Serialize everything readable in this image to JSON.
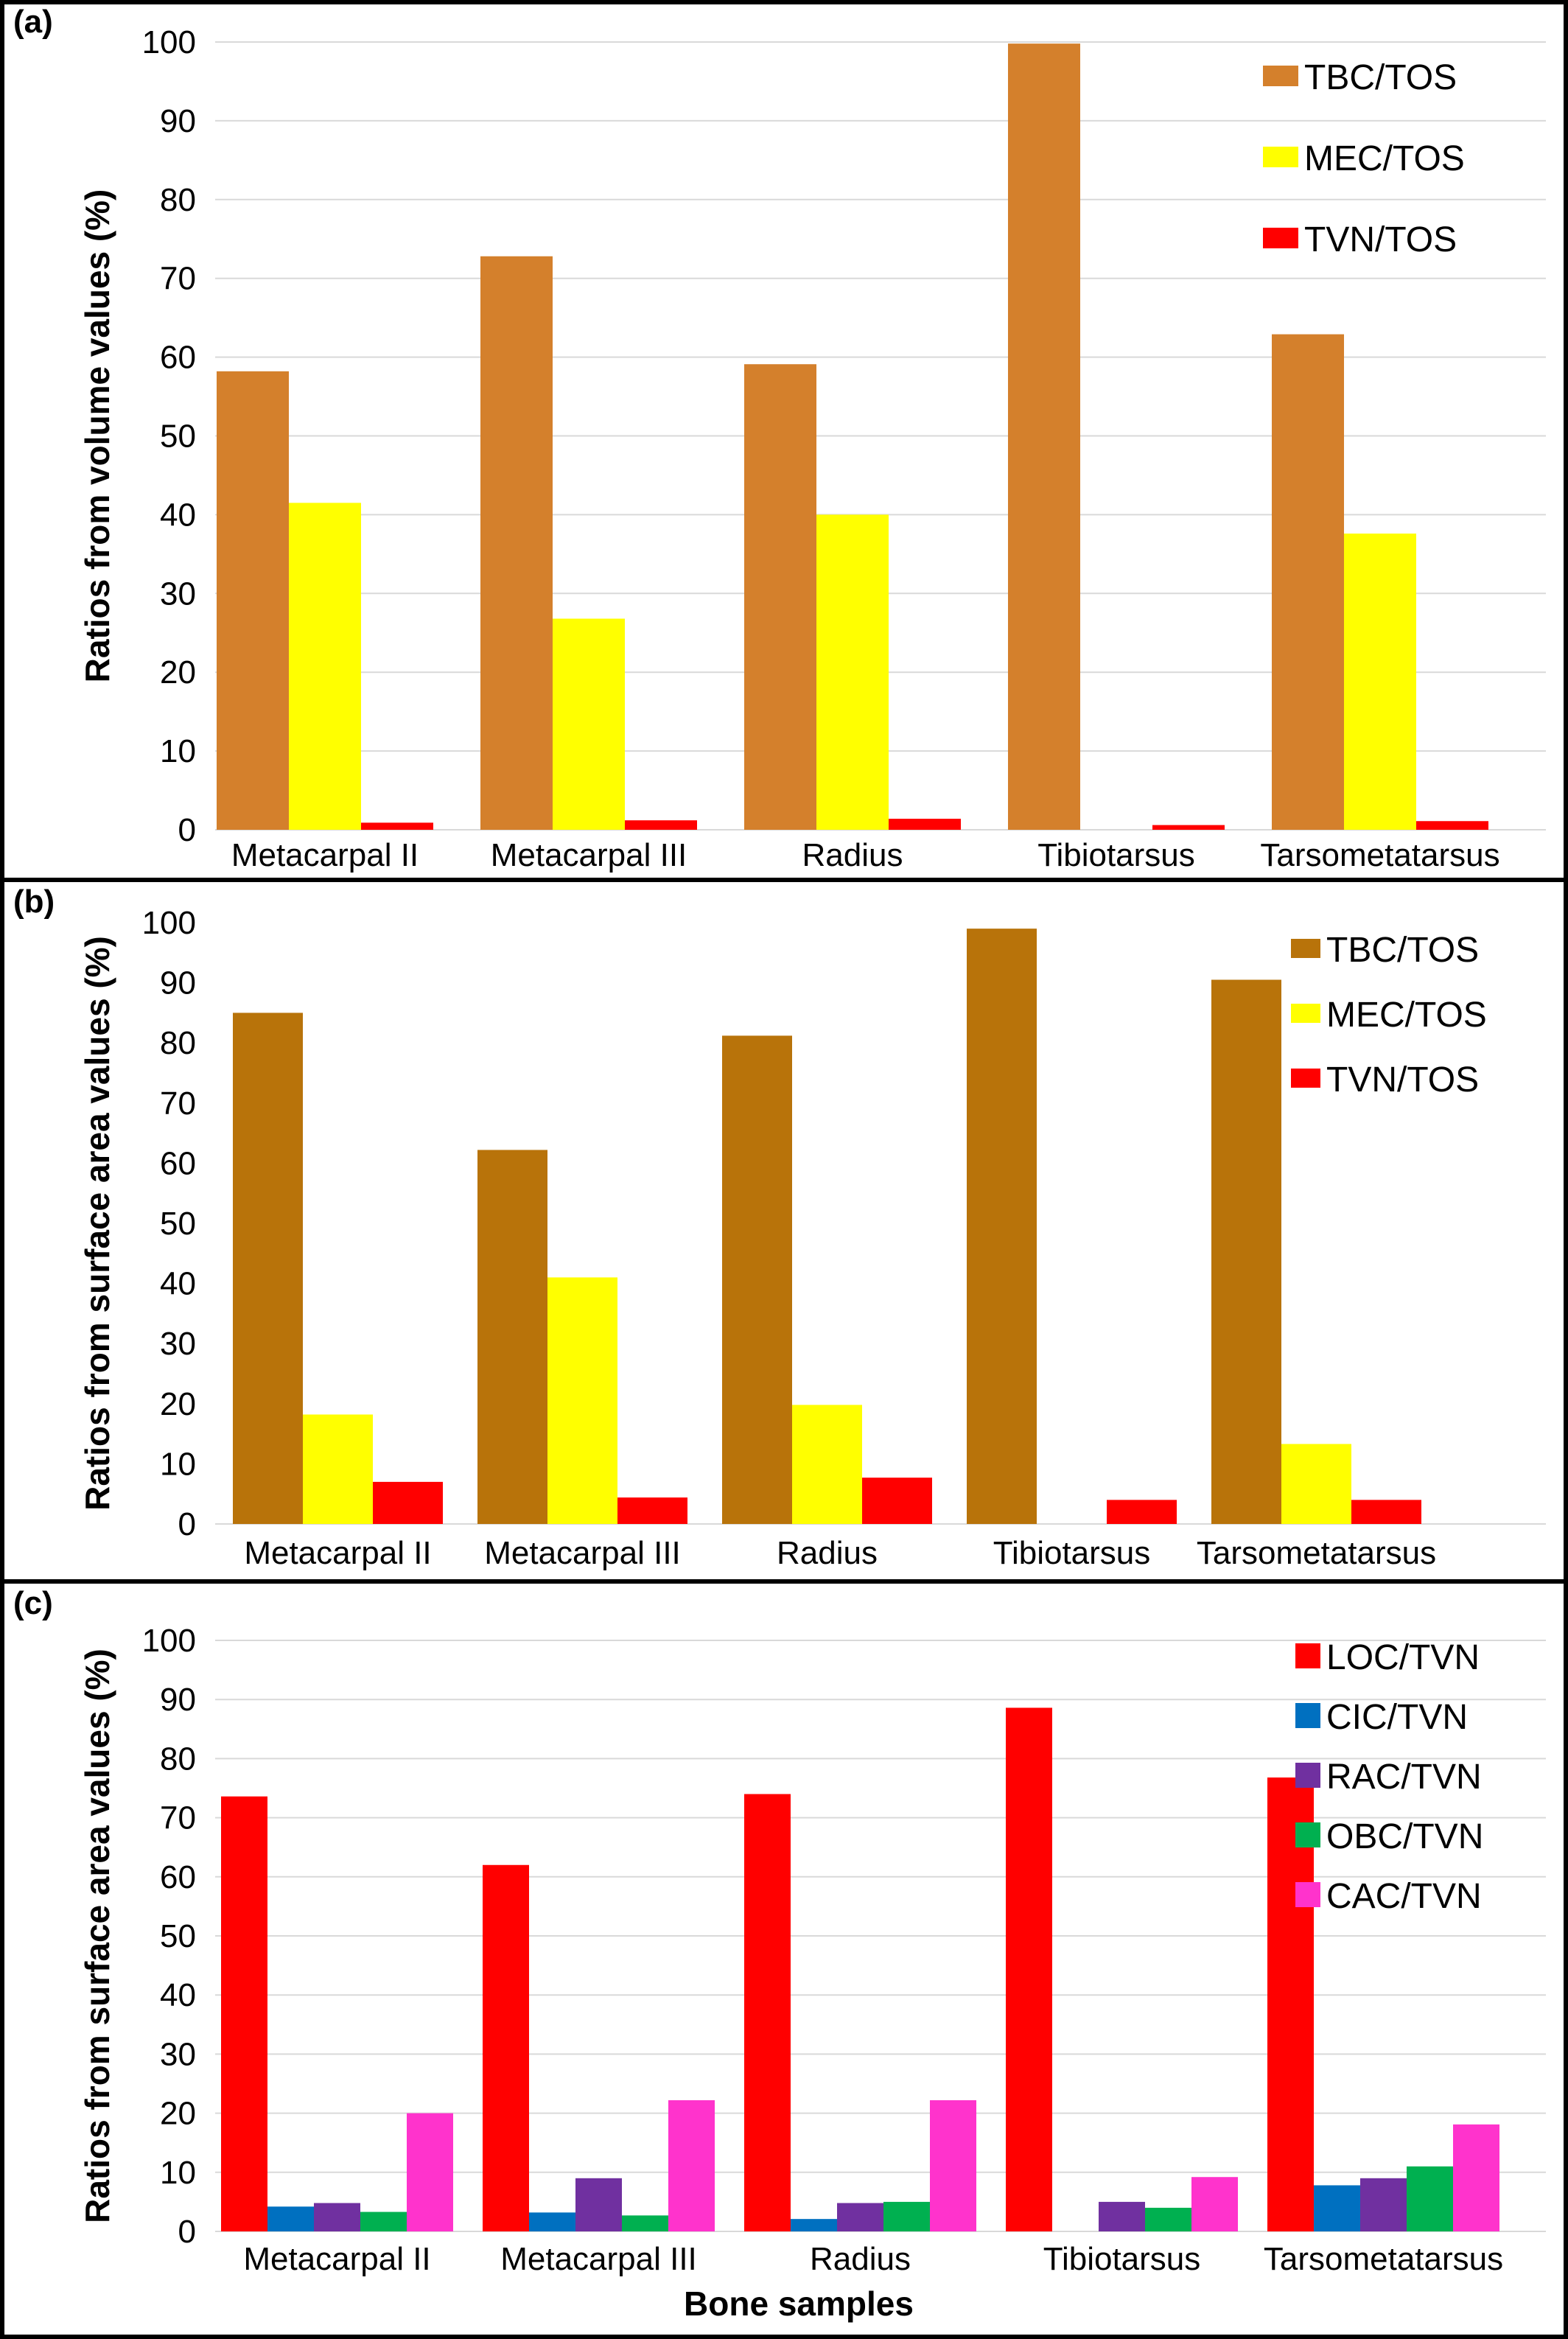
{
  "chart_data": [
    {
      "type": "bar",
      "panel_label": "(a)",
      "ylabel": "Ratios from volume values (%)",
      "xlabel": "",
      "ylim": [
        0,
        100
      ],
      "yticks": [
        0,
        10,
        20,
        30,
        40,
        50,
        60,
        70,
        80,
        90,
        100
      ],
      "grid": true,
      "legend_position": "top-right",
      "categories": [
        "Metacarpal II",
        "Metacarpal III",
        "Radius",
        "Tibiotarsus",
        "Tarsometatarsus"
      ],
      "series": [
        {
          "name": "TBC/TOS",
          "color": "#d4802c",
          "values": [
            58.2,
            72.8,
            59.1,
            99.8,
            62.9
          ]
        },
        {
          "name": "MEC/TOS",
          "color": "#ffff00",
          "values": [
            41.5,
            26.8,
            40.0,
            0,
            37.6
          ]
        },
        {
          "name": "TVN/TOS",
          "color": "#ff0000",
          "values": [
            0.9,
            1.2,
            1.4,
            0.6,
            1.1
          ]
        }
      ]
    },
    {
      "type": "bar",
      "panel_label": "(b)",
      "ylabel": "Ratios from surface area values (%)",
      "xlabel": "",
      "ylim": [
        0,
        100
      ],
      "yticks": [
        0,
        10,
        20,
        30,
        40,
        50,
        60,
        70,
        80,
        90,
        100
      ],
      "grid": false,
      "legend_position": "top-right",
      "categories": [
        "Metacarpal II",
        "Metacarpal III",
        "Radius",
        "Tibiotarsus",
        "Tarsometatarsus"
      ],
      "series": [
        {
          "name": "TBC/TOS",
          "color": "#b8730a",
          "values": [
            85.0,
            62.2,
            81.2,
            99.0,
            90.5
          ]
        },
        {
          "name": "MEC/TOS",
          "color": "#ffff00",
          "values": [
            18.2,
            41.0,
            19.8,
            0,
            13.3
          ]
        },
        {
          "name": "TVN/TOS",
          "color": "#ff0000",
          "values": [
            7.0,
            4.4,
            7.7,
            4.0,
            4.0
          ]
        }
      ]
    },
    {
      "type": "bar",
      "panel_label": "(c)",
      "ylabel": "Ratios from surface area values (%)",
      "xlabel": "Bone samples",
      "ylim": [
        0,
        100
      ],
      "yticks": [
        0,
        10,
        20,
        30,
        40,
        50,
        60,
        70,
        80,
        90,
        100
      ],
      "grid": true,
      "legend_position": "top-right",
      "categories": [
        "Metacarpal II",
        "Metacarpal III",
        "Radius",
        "Tibiotarsus",
        "Tarsometatarsus"
      ],
      "series": [
        {
          "name": "LOC/TVN",
          "color": "#ff0000",
          "values": [
            73.6,
            62.0,
            74.0,
            88.6,
            76.8
          ]
        },
        {
          "name": "CIC/TVN",
          "color": "#0070c0",
          "values": [
            4.2,
            3.2,
            2.1,
            0,
            7.8
          ]
        },
        {
          "name": "RAC/TVN",
          "color": "#7030a0",
          "values": [
            4.8,
            9.0,
            4.8,
            5.0,
            9.0
          ]
        },
        {
          "name": "OBC/TVN",
          "color": "#00b050",
          "values": [
            3.3,
            2.7,
            5.0,
            4.0,
            11.0
          ]
        },
        {
          "name": "CAC/TVN",
          "color": "#ff33cc",
          "values": [
            20.0,
            22.2,
            22.2,
            9.2,
            18.1
          ]
        }
      ]
    }
  ]
}
